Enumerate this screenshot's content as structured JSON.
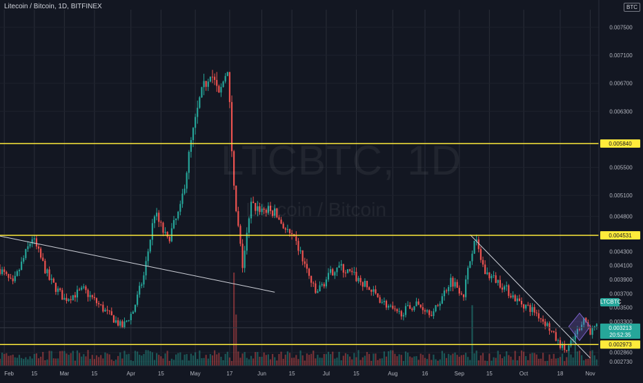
{
  "header": {
    "symbol_title": "Litecoin / Bitcoin, 1D, BITFINEX",
    "watermark_symbol": "LTCBTC, 1D",
    "watermark_name": "Litecoin / Bitcoin",
    "scale_badge": "BTC"
  },
  "colors": {
    "background": "#131722",
    "up": "#26a69a",
    "down": "#ef5350",
    "level_line": "#ffeb3b",
    "trendline": "#d1d4dc",
    "pattern": "#7b61c9",
    "price_label": "#26a69a"
  },
  "chart_data": {
    "type": "candlestick",
    "y_axis": {
      "side": "right",
      "range": [
        0.00267,
        0.00775
      ],
      "tick_labels": [
        "0.007500",
        "0.007100",
        "0.006700",
        "0.006300",
        "0.005500",
        "0.005100",
        "0.004800",
        "0.004300",
        "0.004100",
        "0.003900",
        "0.003700",
        "0.003500",
        "0.003300",
        "0.002860",
        "0.002730"
      ],
      "tick_values": [
        0.0075,
        0.0071,
        0.0067,
        0.0063,
        0.0055,
        0.0051,
        0.0048,
        0.0043,
        0.0041,
        0.0039,
        0.0037,
        0.0035,
        0.0033,
        0.00286,
        0.00273
      ]
    },
    "x_axis": {
      "tick_labels": [
        "Feb",
        "15",
        "Mar",
        "15",
        "Apr",
        "15",
        "May",
        "17",
        "Jun",
        "15",
        "Jul",
        "15",
        "Aug",
        "16",
        "Sep",
        "15",
        "Oct",
        "18",
        "Nov"
      ],
      "tick_dates": [
        "2021-02-01",
        "2021-02-15",
        "2021-03-01",
        "2021-03-15",
        "2021-04-01",
        "2021-04-15",
        "2021-05-01",
        "2021-05-17",
        "2021-06-01",
        "2021-06-15",
        "2021-07-01",
        "2021-07-15",
        "2021-08-01",
        "2021-08-16",
        "2021-09-01",
        "2021-09-15",
        "2021-10-01",
        "2021-10-18",
        "2021-11-01"
      ],
      "start_date": "2021-01-30",
      "end_date": "2021-11-05"
    },
    "horizontal_levels": [
      {
        "value": 0.00584,
        "label": "0.005840"
      },
      {
        "value": 0.004531,
        "label": "0.004531"
      },
      {
        "value": 0.002973,
        "label": "0.002973"
      }
    ],
    "current_price": {
      "value": 0.003213,
      "label": "0.003213",
      "countdown": "20:52:35",
      "ticker": "LTCBTC"
    },
    "trendlines": [
      {
        "from": {
          "date": "2021-01-30",
          "value": 0.00452
        },
        "to": {
          "date": "2021-06-07",
          "value": 0.00372
        }
      },
      {
        "from": {
          "date": "2021-09-06",
          "value": 0.00454
        },
        "to": {
          "date": "2021-11-01",
          "value": 0.00278
        }
      }
    ],
    "pattern": {
      "shape": "diamond",
      "from_date": "2021-10-22",
      "to_date": "2021-11-01",
      "top": 0.00342,
      "bottom": 0.00303,
      "mid": 0.00323
    },
    "ohlc_keypoints": [
      {
        "date": "2021-01-30",
        "close": 0.00405
      },
      {
        "date": "2021-02-05",
        "close": 0.00382
      },
      {
        "date": "2021-02-14",
        "close": 0.0045
      },
      {
        "date": "2021-02-22",
        "close": 0.0039
      },
      {
        "date": "2021-03-01",
        "close": 0.00362
      },
      {
        "date": "2021-03-10",
        "close": 0.00375
      },
      {
        "date": "2021-03-20",
        "close": 0.00345
      },
      {
        "date": "2021-03-28",
        "close": 0.00322
      },
      {
        "date": "2021-04-02",
        "close": 0.00345
      },
      {
        "date": "2021-04-07",
        "close": 0.00395
      },
      {
        "date": "2021-04-12",
        "close": 0.00485
      },
      {
        "date": "2021-04-18",
        "close": 0.00445
      },
      {
        "date": "2021-04-24",
        "close": 0.0049
      },
      {
        "date": "2021-04-29",
        "close": 0.00585
      },
      {
        "date": "2021-05-03",
        "close": 0.00645
      },
      {
        "date": "2021-05-08",
        "close": 0.0069
      },
      {
        "date": "2021-05-12",
        "close": 0.0065
      },
      {
        "date": "2021-05-16",
        "close": 0.00695
      },
      {
        "date": "2021-05-19",
        "close": 0.00515
      },
      {
        "date": "2021-05-23",
        "close": 0.0041
      },
      {
        "date": "2021-05-27",
        "close": 0.00495
      },
      {
        "date": "2021-06-07",
        "close": 0.00485
      },
      {
        "date": "2021-06-18",
        "close": 0.00435
      },
      {
        "date": "2021-06-26",
        "close": 0.0037
      },
      {
        "date": "2021-07-06",
        "close": 0.0041
      },
      {
        "date": "2021-07-14",
        "close": 0.00395
      },
      {
        "date": "2021-07-24",
        "close": 0.00368
      },
      {
        "date": "2021-08-03",
        "close": 0.0034
      },
      {
        "date": "2021-08-12",
        "close": 0.00355
      },
      {
        "date": "2021-08-20",
        "close": 0.00342
      },
      {
        "date": "2021-08-28",
        "close": 0.0039
      },
      {
        "date": "2021-09-03",
        "close": 0.0037
      },
      {
        "date": "2021-09-08",
        "close": 0.0045
      },
      {
        "date": "2021-09-13",
        "close": 0.004
      },
      {
        "date": "2021-09-20",
        "close": 0.00385
      },
      {
        "date": "2021-09-28",
        "close": 0.0036
      },
      {
        "date": "2021-10-06",
        "close": 0.00345
      },
      {
        "date": "2021-10-12",
        "close": 0.00325
      },
      {
        "date": "2021-10-17",
        "close": 0.003
      },
      {
        "date": "2021-10-21",
        "close": 0.00288
      },
      {
        "date": "2021-10-25",
        "close": 0.0031
      },
      {
        "date": "2021-10-29",
        "close": 0.00336
      },
      {
        "date": "2021-11-01",
        "close": 0.00316
      },
      {
        "date": "2021-11-04",
        "close": 0.00321
      }
    ],
    "volume_spikes": [
      {
        "date": "2021-05-19",
        "relative": 1.0
      },
      {
        "date": "2021-05-20",
        "relative": 0.55
      },
      {
        "date": "2021-09-07",
        "relative": 0.65
      },
      {
        "date": "2021-10-25",
        "relative": 0.35
      }
    ]
  }
}
